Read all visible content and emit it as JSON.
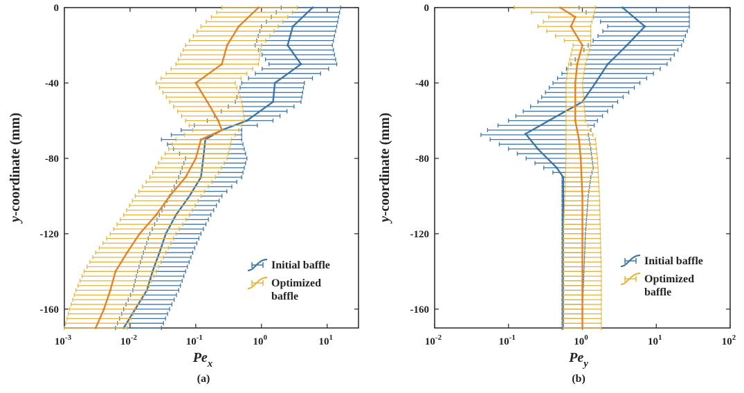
{
  "colors": {
    "initial": "#3a74a8",
    "optimized": "#e7b33b",
    "optimized_mean": "#e2832b"
  },
  "chart_data": [
    {
      "type": "line",
      "panel": "(a)",
      "xlabel": "Pe",
      "xlabel_sub": "x",
      "ylabel": "y-coordinate (mm)",
      "ylabel_italic": "y",
      "ylabel_rest": "-coordinate (mm)",
      "x_scale": "log",
      "xlim": [
        0.001,
        30
      ],
      "ylim": [
        -170,
        0
      ],
      "x_ticks": [
        {
          "value": 0.001,
          "base": "10",
          "exp": "-3"
        },
        {
          "value": 0.01,
          "base": "10",
          "exp": "-2"
        },
        {
          "value": 0.1,
          "base": "10",
          "exp": "-1"
        },
        {
          "value": 1,
          "base": "10",
          "exp": "0"
        },
        {
          "value": 10,
          "base": "10",
          "exp": "1"
        }
      ],
      "y_ticks": [
        {
          "value": 0,
          "label": "0"
        },
        {
          "value": -40,
          "label": "-40"
        },
        {
          "value": -80,
          "label": "-80"
        },
        {
          "value": -120,
          "label": "-120"
        },
        {
          "value": -160,
          "label": "-160"
        }
      ],
      "legend_position": "bottom-right",
      "series": [
        {
          "name": "Initial baffle",
          "y": [
            0,
            -10,
            -20,
            -30,
            -40,
            -50,
            -60,
            -65,
            -70,
            -80,
            -90,
            -100,
            -110,
            -120,
            -130,
            -140,
            -150,
            -160,
            -170
          ],
          "mean": [
            6,
            3,
            2.5,
            4,
            1.6,
            1.5,
            0.6,
            0.25,
            0.14,
            0.13,
            0.12,
            0.08,
            0.05,
            0.035,
            0.028,
            0.022,
            0.018,
            0.012,
            0.008
          ],
          "lower": [
            2,
            1,
            0.8,
            1.3,
            0.5,
            0.4,
            0.15,
            0.06,
            0.03,
            0.07,
            0.055,
            0.04,
            0.028,
            0.02,
            0.016,
            0.013,
            0.011,
            0.008,
            0.006
          ],
          "upper": [
            16,
            14,
            12,
            14,
            4.5,
            4,
            1.5,
            0.5,
            0.5,
            0.6,
            0.5,
            0.25,
            0.17,
            0.12,
            0.09,
            0.07,
            0.055,
            0.04,
            0.03
          ]
        },
        {
          "name": "Optimized baffle",
          "y": [
            0,
            -10,
            -20,
            -30,
            -40,
            -50,
            -60,
            -65,
            -70,
            -80,
            -90,
            -100,
            -110,
            -120,
            -130,
            -140,
            -150,
            -160,
            -170
          ],
          "mean": [
            0.9,
            0.45,
            0.3,
            0.25,
            0.1,
            0.15,
            0.22,
            0.25,
            0.12,
            0.1,
            0.07,
            0.04,
            0.025,
            0.014,
            0.009,
            0.006,
            0.005,
            0.004,
            0.003
          ],
          "lower": [
            0.25,
            0.12,
            0.07,
            0.05,
            0.025,
            0.04,
            0.07,
            0.09,
            0.05,
            0.03,
            0.02,
            0.012,
            0.008,
            0.005,
            0.003,
            0.002,
            0.0015,
            0.0012,
            0.001
          ],
          "upper": [
            3.5,
            1.8,
            1,
            0.9,
            0.4,
            0.5,
            0.55,
            0.45,
            0.35,
            0.3,
            0.2,
            0.12,
            0.08,
            0.05,
            0.035,
            0.025,
            0.018,
            0.012,
            0.009
          ]
        }
      ]
    },
    {
      "type": "line",
      "panel": "(b)",
      "xlabel": "Pe",
      "xlabel_sub": "y",
      "ylabel": "y-coordinate (mm)",
      "ylabel_italic": "y",
      "ylabel_rest": "-coordinate (mm)",
      "x_scale": "log",
      "xlim": [
        0.01,
        100
      ],
      "ylim": [
        -170,
        0
      ],
      "x_ticks": [
        {
          "value": 0.01,
          "base": "10",
          "exp": "-2"
        },
        {
          "value": 0.1,
          "base": "10",
          "exp": "-1"
        },
        {
          "value": 1,
          "base": "10",
          "exp": "0"
        },
        {
          "value": 10,
          "base": "10",
          "exp": "1"
        },
        {
          "value": 100,
          "base": "10",
          "exp": "2"
        }
      ],
      "y_ticks": [
        {
          "value": 0,
          "label": "0"
        },
        {
          "value": -40,
          "label": "-40"
        },
        {
          "value": -80,
          "label": "-80"
        },
        {
          "value": -120,
          "label": "-120"
        },
        {
          "value": -160,
          "label": "-160"
        }
      ],
      "legend_position": "bottom-right",
      "series": [
        {
          "name": "Initial baffle",
          "y": [
            0,
            -10,
            -20,
            -30,
            -40,
            -50,
            -60,
            -67,
            -75,
            -85,
            -90,
            -100,
            -120,
            -140,
            -160,
            -170
          ],
          "mean": [
            3.5,
            7,
            4,
            2.2,
            1.5,
            1,
            0.35,
            0.17,
            0.25,
            0.45,
            0.55,
            0.55,
            0.55,
            0.55,
            0.55,
            0.55
          ],
          "lower": [
            0.9,
            2.2,
            1.2,
            0.7,
            0.4,
            0.25,
            0.1,
            0.04,
            0.1,
            0.3,
            0.53,
            0.53,
            0.53,
            0.53,
            0.53,
            0.53
          ],
          "upper": [
            28,
            28,
            22,
            14,
            6,
            3,
            1.6,
            1.2,
            1.3,
            1.4,
            1.3,
            1.2,
            1.1,
            1.05,
            1.0,
            1.0
          ]
        },
        {
          "name": "Optimized baffle",
          "y": [
            0,
            -5,
            -10,
            -20,
            -30,
            -40,
            -60,
            -70,
            -80,
            -100,
            -120,
            -140,
            -160,
            -170
          ],
          "mean": [
            0.5,
            0.8,
            0.7,
            1.0,
            0.85,
            0.8,
            0.8,
            0.9,
            0.95,
            1.0,
            1.0,
            1.0,
            1.0,
            1.0
          ],
          "lower": [
            0.12,
            0.35,
            0.25,
            0.75,
            0.65,
            0.6,
            0.6,
            0.6,
            0.6,
            0.58,
            0.55,
            0.55,
            0.55,
            0.55
          ],
          "upper": [
            1.5,
            1.4,
            1.3,
            1.3,
            1.1,
            1.0,
            1.1,
            1.5,
            1.6,
            1.7,
            1.75,
            1.8,
            1.8,
            1.8
          ]
        }
      ]
    }
  ]
}
